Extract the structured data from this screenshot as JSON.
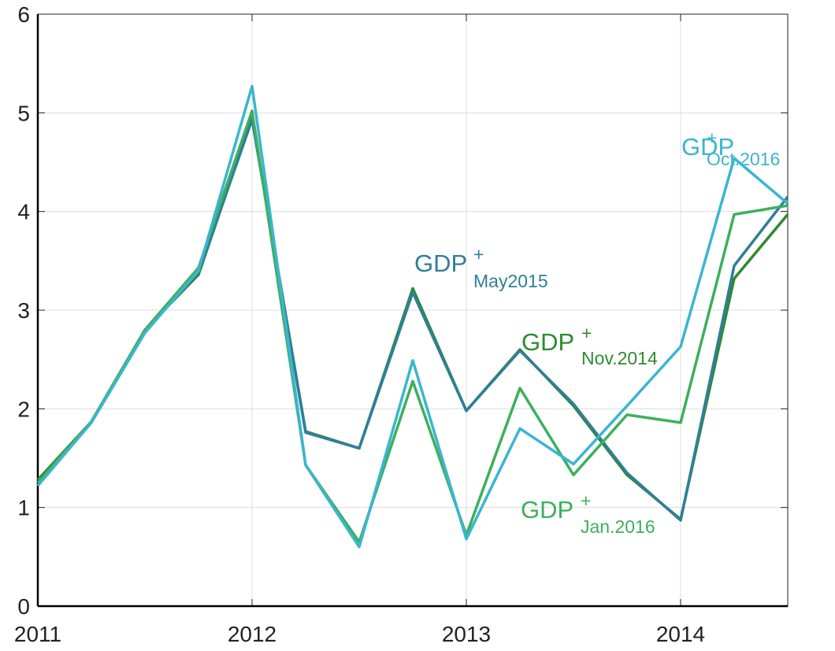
{
  "chart_data": {
    "type": "line",
    "x": [
      2011,
      2011.25,
      2011.5,
      2011.75,
      2012,
      2012.25,
      2012.5,
      2012.75,
      2013,
      2013.25,
      2013.5,
      2013.75,
      2014,
      2014.25,
      2014.5
    ],
    "xlim": [
      2011,
      2014.5
    ],
    "xticks": [
      2011,
      2012,
      2013,
      2014
    ],
    "ylim": [
      0,
      6
    ],
    "yticks": [
      0,
      1,
      2,
      3,
      4,
      5,
      6
    ],
    "grid": true,
    "label_base": "GDP",
    "label_sup": "+",
    "series": [
      {
        "name": "Nov.2014",
        "color": "#2f8a2f",
        "values": [
          1.28,
          1.87,
          2.8,
          3.36,
          4.95,
          1.77,
          1.6,
          3.22,
          1.98,
          2.6,
          2.03,
          1.33,
          0.88,
          3.32,
          3.97
        ]
      },
      {
        "name": "May2015",
        "color": "#2f7f99",
        "values": [
          1.25,
          1.87,
          2.79,
          3.38,
          4.93,
          1.76,
          1.6,
          3.18,
          1.98,
          2.59,
          2.05,
          1.35,
          0.87,
          3.45,
          4.15
        ]
      },
      {
        "name": "Jan.2016",
        "color": "#3cb05c",
        "values": [
          1.25,
          1.87,
          2.8,
          3.43,
          5.02,
          1.43,
          0.65,
          2.28,
          0.72,
          2.21,
          1.33,
          1.94,
          1.86,
          3.97,
          4.06
        ]
      },
      {
        "name": "Oct.2016",
        "color": "#3bb5d0",
        "values": [
          1.22,
          1.86,
          2.77,
          3.4,
          5.27,
          1.43,
          0.6,
          2.49,
          0.68,
          1.8,
          1.44,
          2.03,
          2.63,
          4.54,
          4.08
        ]
      }
    ]
  }
}
